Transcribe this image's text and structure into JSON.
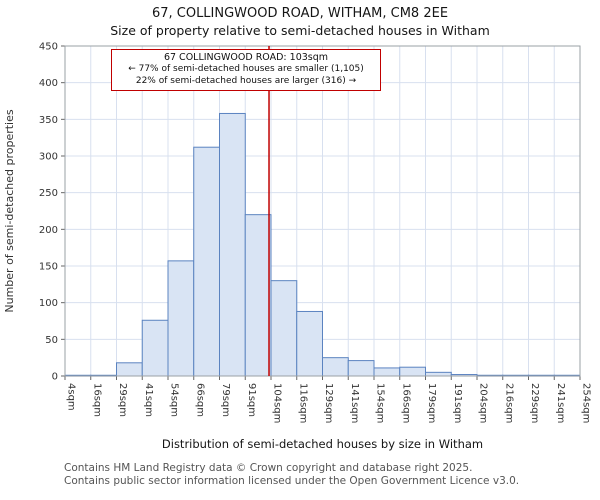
{
  "header": {
    "title": "67, COLLINGWOOD ROAD, WITHAM, CM8 2EE",
    "subtitle": "Size of property relative to semi-detached houses in Witham"
  },
  "chart_data": {
    "type": "bar",
    "title": "67, COLLINGWOOD ROAD, WITHAM, CM8 2EE",
    "subtitle": "Size of property relative to semi-detached houses in Witham",
    "xlabel": "Distribution of semi-detached houses by size in Witham",
    "ylabel": "Number of semi-detached properties",
    "ylim": [
      0,
      450
    ],
    "ytick_step": 50,
    "grid": true,
    "bin_edges": [
      4,
      16,
      29,
      41,
      54,
      66,
      79,
      91,
      104,
      116,
      129,
      141,
      154,
      166,
      179,
      191,
      204,
      216,
      229,
      241,
      254
    ],
    "tick_labels": [
      "4sqm",
      "16sqm",
      "29sqm",
      "41sqm",
      "54sqm",
      "66sqm",
      "79sqm",
      "91sqm",
      "104sqm",
      "116sqm",
      "129sqm",
      "141sqm",
      "154sqm",
      "166sqm",
      "179sqm",
      "191sqm",
      "204sqm",
      "216sqm",
      "229sqm",
      "241sqm",
      "254sqm"
    ],
    "values": [
      1,
      1,
      18,
      76,
      157,
      312,
      358,
      220,
      130,
      88,
      25,
      21,
      11,
      12,
      5,
      2,
      1,
      1,
      1,
      1
    ],
    "marker": {
      "value": 103,
      "label": "67 COLLINGWOOD ROAD: 103sqm"
    },
    "annotation": {
      "line1": "67 COLLINGWOOD ROAD: 103sqm",
      "line2": "← 77% of semi-detached houses are smaller (1,105)",
      "line3": "22% of semi-detached houses are larger (316) →"
    },
    "colors": {
      "bar_fill": "#d9e4f4",
      "bar_stroke": "#5b83c0",
      "marker": "#c00000",
      "grid": "#d8e0ef",
      "spine": "#9aa0a6"
    }
  },
  "footer": {
    "line1": "Contains HM Land Registry data © Crown copyright and database right 2025.",
    "line2": "Contains public sector information licensed under the Open Government Licence v3.0."
  }
}
